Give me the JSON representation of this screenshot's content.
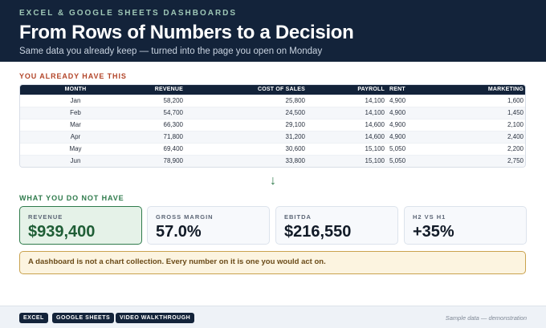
{
  "header": {
    "eyebrow": "EXCEL & GOOGLE SHEETS DASHBOARDS",
    "title": "From Rows of Numbers to a Decision",
    "subtitle": "Same data you already keep — turned into the page you open on Monday"
  },
  "have_section": {
    "label": "YOU ALREADY HAVE THIS",
    "columns": [
      "MONTH",
      "REVENUE",
      "COST OF SALES",
      "PAYROLL",
      "RENT",
      "MARKETING"
    ],
    "rows": [
      [
        "Jan",
        "58,200",
        "25,800",
        "14,100",
        "4,900",
        "1,600"
      ],
      [
        "Feb",
        "54,700",
        "24,500",
        "14,100",
        "4,900",
        "1,450"
      ],
      [
        "Mar",
        "66,300",
        "29,100",
        "14,600",
        "4,900",
        "2,100"
      ],
      [
        "Apr",
        "71,800",
        "31,200",
        "14,600",
        "4,900",
        "2,400"
      ],
      [
        "May",
        "69,400",
        "30,600",
        "15,100",
        "5,050",
        "2,200"
      ],
      [
        "Jun",
        "78,900",
        "33,800",
        "15,100",
        "5,050",
        "2,750"
      ]
    ]
  },
  "arrow": "↓",
  "not_have_section": {
    "label": "WHAT YOU DO NOT HAVE",
    "kpis": [
      {
        "label": "REVENUE",
        "value": "$939,400"
      },
      {
        "label": "GROSS MARGIN",
        "value": "57.0%"
      },
      {
        "label": "EBITDA",
        "value": "$216,550"
      },
      {
        "label": "H2 VS H1",
        "value": "+35%"
      }
    ]
  },
  "callout": "A dashboard is not a chart collection. Every number on it is one you would act on.",
  "footer": {
    "chips": [
      "EXCEL",
      "GOOGLE SHEETS",
      "VIDEO WALKTHROUGH"
    ],
    "note": "Sample data — demonstration"
  },
  "colors": {
    "header_bg": "#13233a",
    "have_label": "#b3462a",
    "not_have_label": "#2f7b4c",
    "highlight_card_bg": "#e5f2e8",
    "callout_bg": "#fcf4e0",
    "callout_border": "#c9a24e"
  }
}
